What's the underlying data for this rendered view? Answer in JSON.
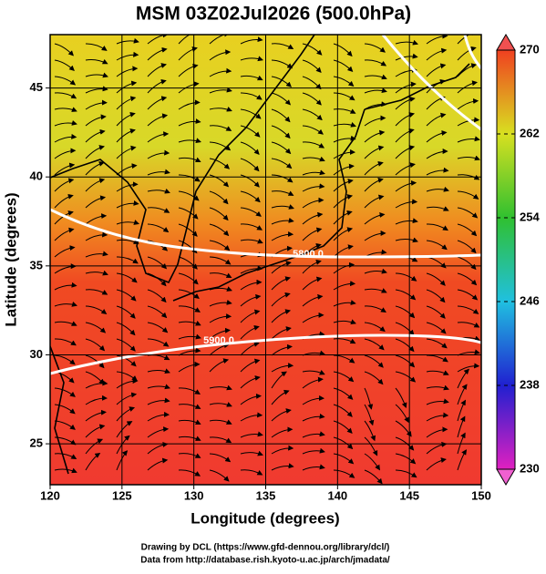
{
  "chart_data": {
    "type": "map",
    "title": "MSM 03Z02Jul2026 (500.0hPa)",
    "x_label": "Longitude (degrees)",
    "y_label": "Latitude  (degrees)",
    "xlim": [
      120,
      150
    ],
    "xticks": [
      120,
      125,
      130,
      135,
      140,
      145,
      150
    ],
    "ylim": [
      22.7,
      48.0
    ],
    "yticks": [
      25,
      30,
      35,
      40,
      45
    ],
    "grid": true,
    "colorbar": {
      "lim": [
        230,
        270
      ],
      "ticks": [
        230,
        238,
        246,
        254,
        262,
        270
      ]
    },
    "contour_labels": [
      "5800.0",
      "5900.0"
    ],
    "footer": [
      "Drawing by DCL (https://www.gfd-dennou.org/library/dcl/)",
      "Data from http://database.rish.kyoto-u.ac.jp/arch/jmadata/"
    ]
  }
}
